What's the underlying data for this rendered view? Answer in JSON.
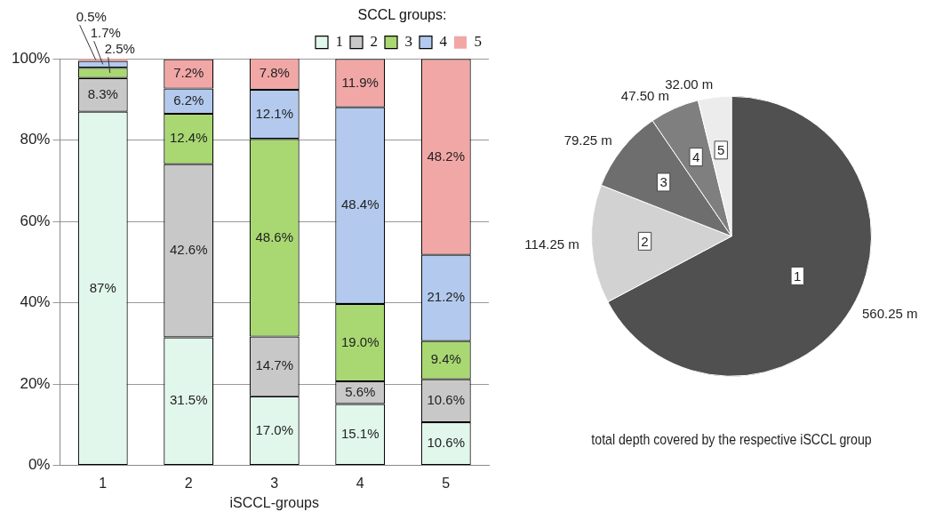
{
  "chart_data": [
    {
      "type": "bar",
      "stacked": true,
      "xlabel": "iSCCL-groups",
      "legend_title": "SCCL groups:",
      "legend": "top",
      "grid": "y",
      "categories": [
        "1",
        "2",
        "3",
        "4",
        "5"
      ],
      "ylim": [
        0,
        100
      ],
      "yticks": [
        {
          "value": 0,
          "label": "0%"
        },
        {
          "value": 20,
          "label": "20%"
        },
        {
          "value": 40,
          "label": "40%"
        },
        {
          "value": 60,
          "label": "60%"
        },
        {
          "value": 80,
          "label": "80%"
        },
        {
          "value": 100,
          "label": "100%"
        }
      ],
      "series": [
        {
          "name": "1",
          "color": "#e2f7ec",
          "values": [
            87,
            31.5,
            17.0,
            15.1,
            10.6
          ],
          "value_labels": [
            "87%",
            "31.5%",
            "17.0%",
            "15.1%",
            "10.6%"
          ]
        },
        {
          "name": "2",
          "color": "#c8c8c8",
          "values": [
            8.3,
            42.6,
            14.7,
            5.6,
            10.6
          ],
          "value_labels": [
            "8.3%",
            "42.6%",
            "14.7%",
            "5.6%",
            "10.6%"
          ]
        },
        {
          "name": "3",
          "color": "#a9d872",
          "values": [
            2.5,
            12.4,
            48.6,
            19.0,
            9.4
          ],
          "value_labels": [
            "2.5%",
            "12.4%",
            "48.6%",
            "19.0%",
            "9.4%"
          ]
        },
        {
          "name": "4",
          "color": "#b3caee",
          "values": [
            1.7,
            6.2,
            12.1,
            48.4,
            21.2
          ],
          "value_labels": [
            "1.7%",
            "6.2%",
            "12.1%",
            "48.4%",
            "21.2%"
          ]
        },
        {
          "name": "5",
          "color": "#f2a7a7",
          "values": [
            0.5,
            7.2,
            7.8,
            11.9,
            48.2
          ],
          "value_labels": [
            "0.5%",
            "7.2%",
            "7.8%",
            "11.9%",
            "48.2%"
          ]
        }
      ]
    },
    {
      "type": "pie",
      "title": "total depth covered by the respective iSCCL group",
      "categories": [
        "1",
        "2",
        "3",
        "4",
        "5"
      ],
      "values": [
        560.25,
        114.25,
        79.25,
        47.5,
        32.0
      ],
      "value_labels": [
        "560.25 m",
        "114.25 m",
        "79.25 m",
        "47.50 m",
        "32.00 m"
      ],
      "colors": [
        "#505050",
        "#d2d2d2",
        "#6e6e6e",
        "#7f7f7f",
        "#ececec"
      ]
    }
  ]
}
